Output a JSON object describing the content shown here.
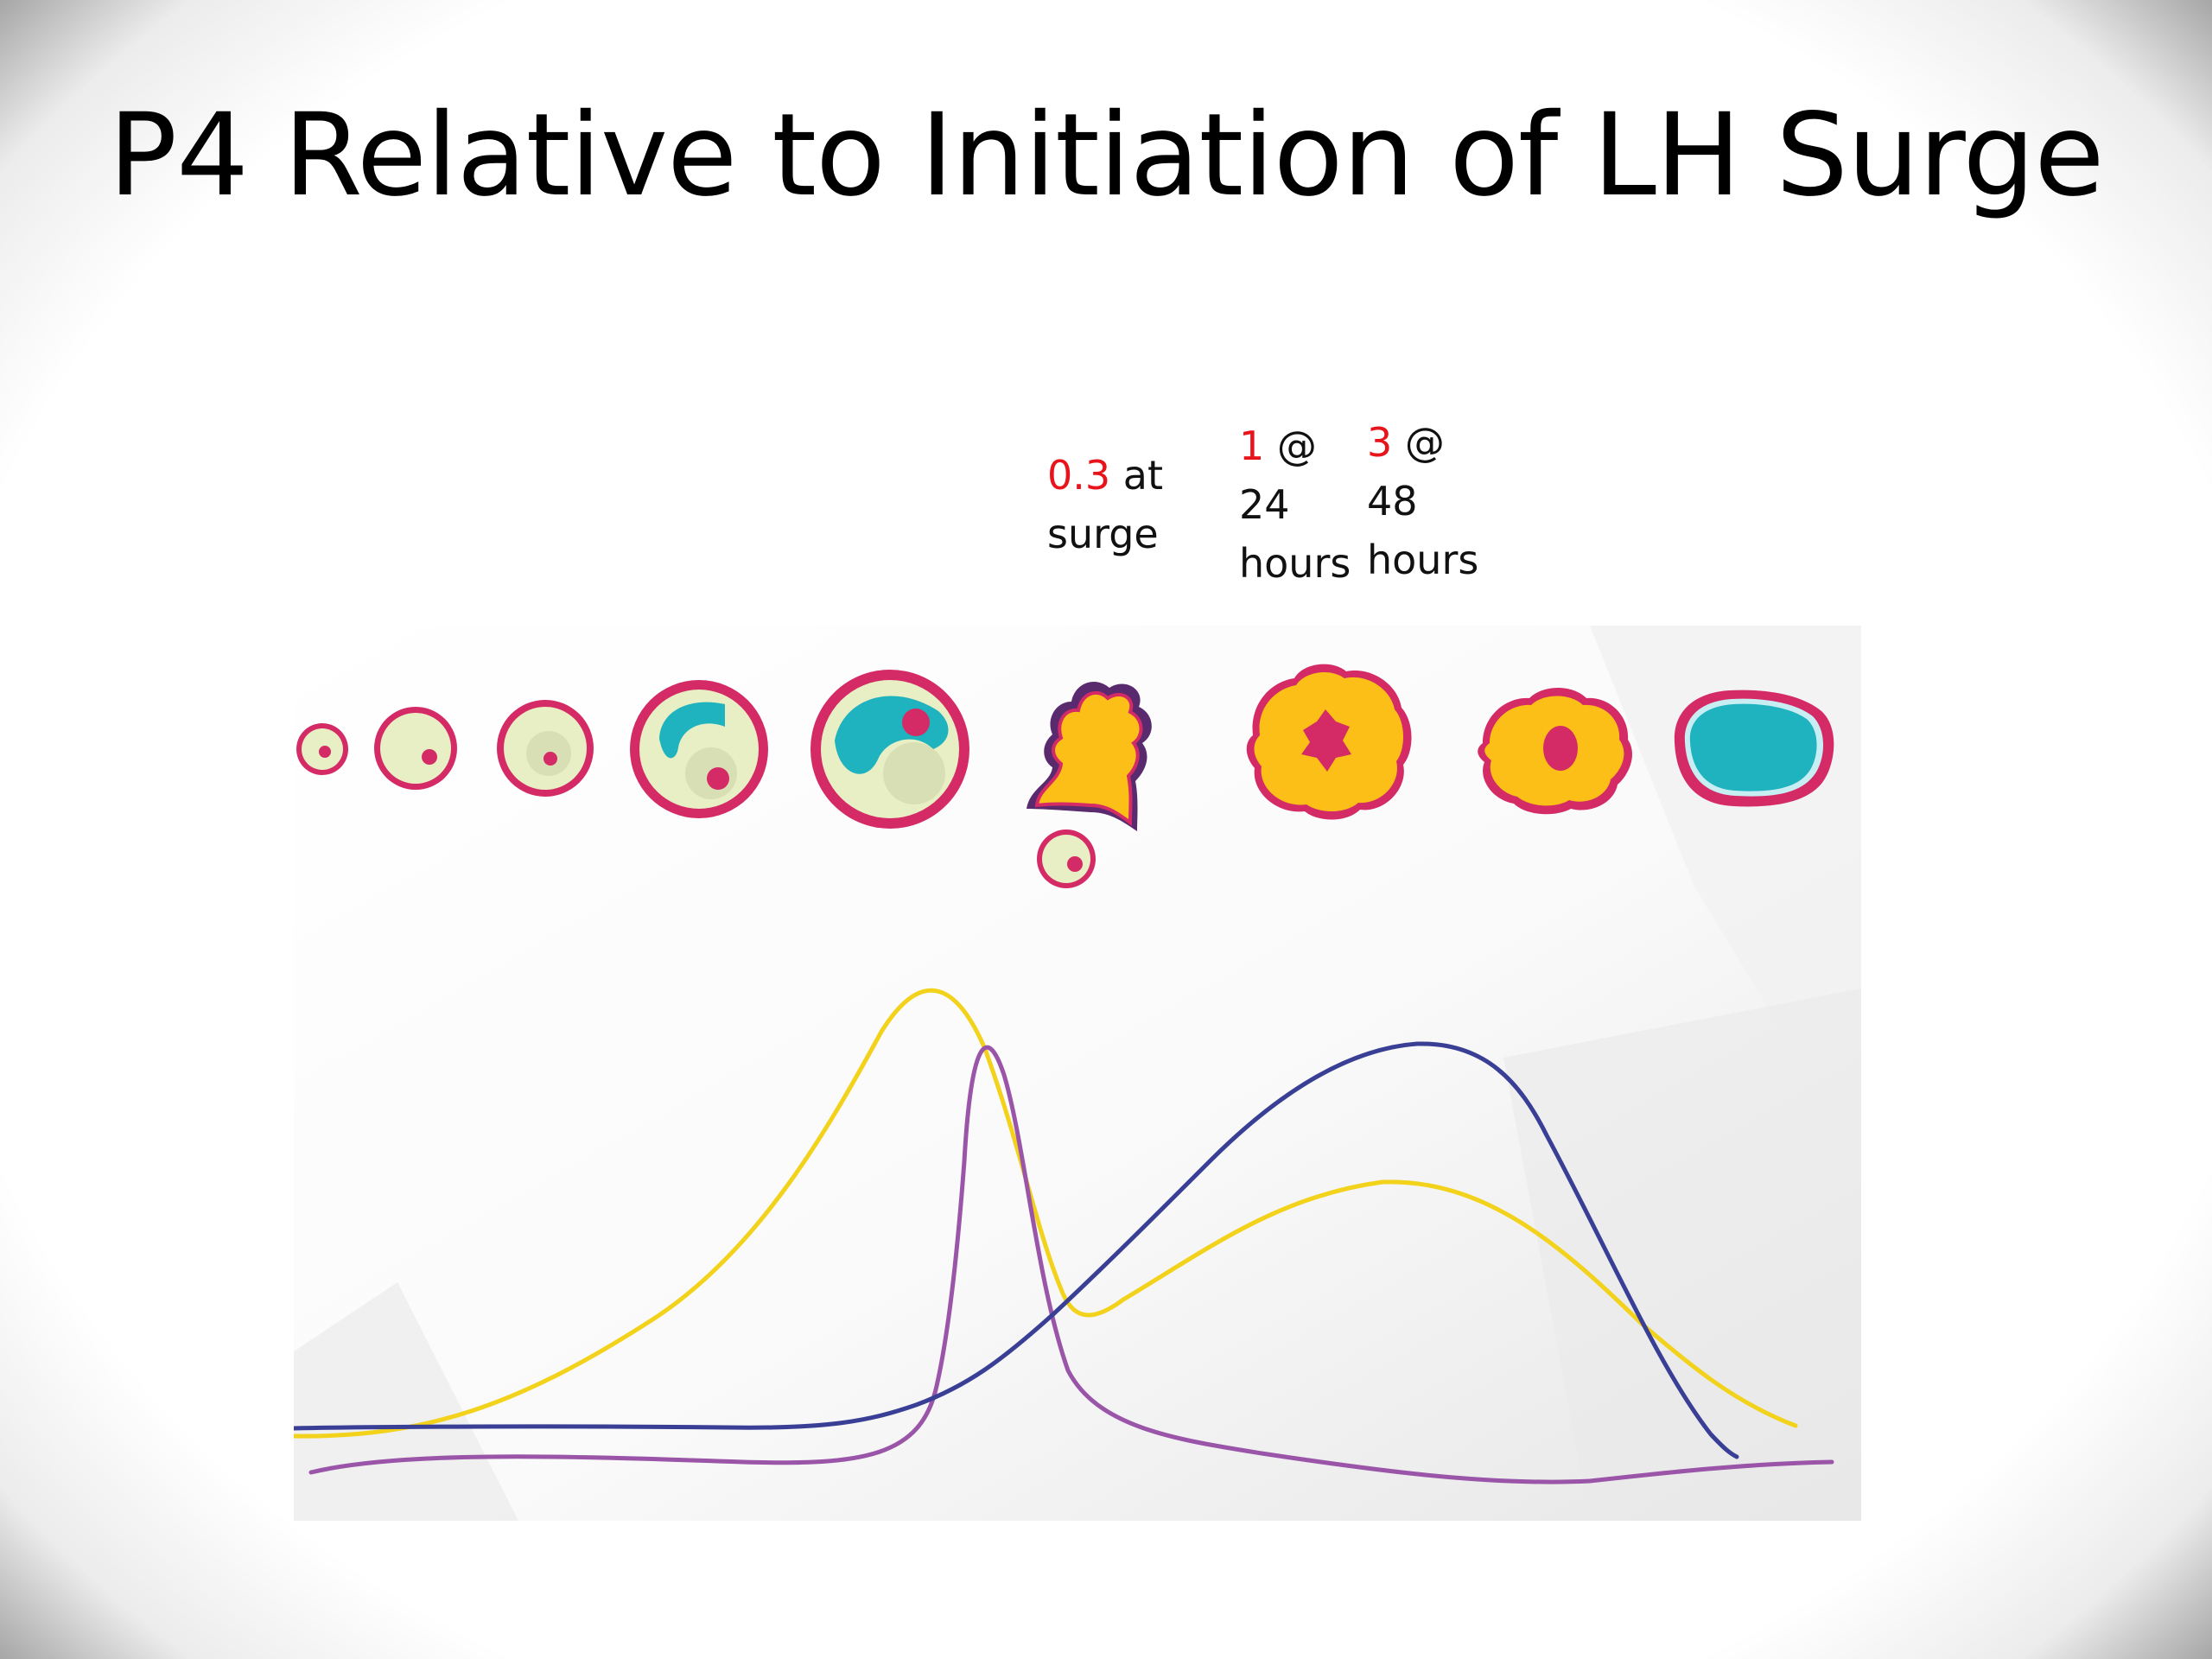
{
  "title": "P4 Relative to Initiation of LH Surge",
  "annotations": [
    {
      "value": "0.3",
      "line1_rest": " at",
      "line2": "surge",
      "line3": ""
    },
    {
      "value": "1",
      "line1_rest": " @",
      "line2": "24",
      "line3": "hours"
    },
    {
      "value": "3",
      "line1_rest": " @",
      "line2": "48",
      "line3": "hours"
    }
  ],
  "colors": {
    "highlight_value": "#e8141b",
    "yellow_curve": "#f2d21b",
    "purple_curve": "#9a55a8",
    "blue_curve": "#3a3f96",
    "follicle_rim": "#d42a66",
    "follicle_fill": "#e8efc4",
    "antrum": "#1fb2bf",
    "corpus_luteum": "#fbbf17"
  },
  "stages": [
    "primordial-follicle",
    "primary-follicle",
    "secondary-follicle",
    "early-antral-follicle",
    "graafian-follicle",
    "ovulation",
    "early-corpus-luteum",
    "mature-corpus-luteum",
    "corpus-albicans"
  ]
}
